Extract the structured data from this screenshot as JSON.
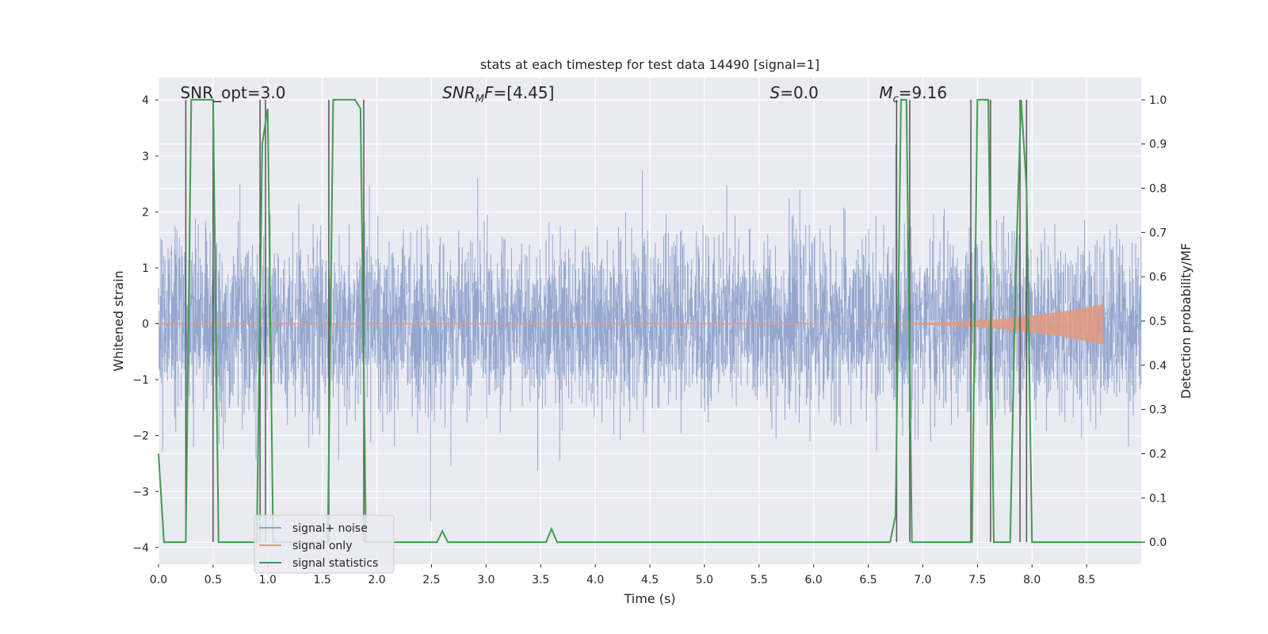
{
  "chart_data": {
    "type": "line",
    "title": "stats at each timestep for test data 14490 [signal=1]",
    "xlabel": "Time (s)",
    "ylabel_left": "Whitened strain",
    "ylabel_right": "Detection probability/MF",
    "xlim": [
      0.0,
      9.0
    ],
    "ylim_left": [
      -4.3,
      4.4
    ],
    "ylim_right": [
      -0.05,
      1.05
    ],
    "x_ticks": [
      "0.0",
      "0.5",
      "1.0",
      "1.5",
      "2.0",
      "2.5",
      "3.0",
      "3.5",
      "4.0",
      "4.5",
      "5.0",
      "5.5",
      "6.0",
      "6.5",
      "7.0",
      "7.5",
      "8.0",
      "8.5"
    ],
    "y_ticks_left": [
      "4",
      "3",
      "2",
      "1",
      "0",
      "−1",
      "−2",
      "−3",
      "−4"
    ],
    "y_ticks_right": [
      "1.0",
      "0.9",
      "0.8",
      "0.7",
      "0.6",
      "0.5",
      "0.4",
      "0.3",
      "0.2",
      "0.1",
      "0.0"
    ],
    "grid": true,
    "legend_position": "lower-left",
    "annotations": [
      {
        "html": "SNR_opt=3.0",
        "x": 0.2
      },
      {
        "html": "<tspan font-style='italic'>SNR</tspan><tspan font-style='italic' font-size='13' dy='5'>M</tspan><tspan font-style='italic' dy='-5'>F</tspan>=[4.45]",
        "x": 2.6
      },
      {
        "html": "<tspan font-style='italic'>S</tspan>=0.0",
        "x": 5.6
      },
      {
        "html": "<tspan font-style='italic'>M</tspan><tspan font-style='italic' font-size='13' dy='5'>c</tspan><tspan dy='-5'>=9.16</tspan>",
        "x": 6.6
      }
    ],
    "annotation_labels": [
      "SNR_opt=3.0",
      "SNRMF=[4.45]",
      "S=0.0",
      "Mc=9.16"
    ],
    "series": [
      {
        "name": "signal+ noise",
        "color": "#8da0cb",
        "kind": "noise",
        "std": 0.75,
        "duration": 9.0,
        "sample_rate_hz": 2048
      },
      {
        "name": "signal only",
        "color": "#e39a7f",
        "kind": "chirp",
        "start": 6.0,
        "end": 8.65,
        "peak_amplitude": 0.35
      },
      {
        "name": "signal statistics",
        "color": "#3f9e4b",
        "kind": "probability",
        "x": [
          0.0,
          0.05,
          0.1,
          0.15,
          0.2,
          0.25,
          0.3,
          0.35,
          0.4,
          0.45,
          0.5,
          0.55,
          0.6,
          0.65,
          0.7,
          0.75,
          0.8,
          0.85,
          0.9,
          0.95,
          1.0,
          1.05,
          1.1,
          1.15,
          1.2,
          1.25,
          1.3,
          1.35,
          1.4,
          1.45,
          1.5,
          1.55,
          1.6,
          1.65,
          1.7,
          1.75,
          1.8,
          1.85,
          1.9,
          1.95,
          2.0,
          2.5,
          2.55,
          2.6,
          2.65,
          2.7,
          2.75,
          3.5,
          3.55,
          3.6,
          3.65,
          3.7,
          3.75,
          6.5,
          6.55,
          6.6,
          6.65,
          6.7,
          6.75,
          6.8,
          6.85,
          6.9,
          6.95,
          7.0,
          7.05,
          7.4,
          7.45,
          7.5,
          7.55,
          7.6,
          7.65,
          7.7,
          7.75,
          7.8,
          7.85,
          7.9,
          7.95,
          8.0,
          8.05,
          8.1,
          8.15,
          9.0
        ],
        "y": [
          0.2,
          0.0,
          0.0,
          0.0,
          0.0,
          0.0,
          1.0,
          1.0,
          1.0,
          1.0,
          1.0,
          0.0,
          0.0,
          0.0,
          0.0,
          0.0,
          0.0,
          0.0,
          0.0,
          0.9,
          0.98,
          0.0,
          0.0,
          0.0,
          0.0,
          0.0,
          0.0,
          0.0,
          0.0,
          0.0,
          0.0,
          0.0,
          1.0,
          1.0,
          1.0,
          1.0,
          1.0,
          0.98,
          0.0,
          0.0,
          0.0,
          0.0,
          0.0,
          0.025,
          0.0,
          0.0,
          0.0,
          0.0,
          0.0,
          0.03,
          0.0,
          0.0,
          0.0,
          0.0,
          0.0,
          0.0,
          0.0,
          0.0,
          0.06,
          1.0,
          1.0,
          0.0,
          0.0,
          0.0,
          0.0,
          0.0,
          0.0,
          1.0,
          1.0,
          1.0,
          0.0,
          0.0,
          0.0,
          0.0,
          0.6,
          1.0,
          0.8,
          0.0,
          0.0,
          0.0,
          0.0,
          0.0
        ]
      }
    ],
    "vertical_markers_x": [
      0.25,
      0.5,
      0.93,
      0.98,
      1.56,
      1.88,
      6.76,
      6.88,
      7.44,
      7.62,
      7.89,
      7.95
    ]
  }
}
